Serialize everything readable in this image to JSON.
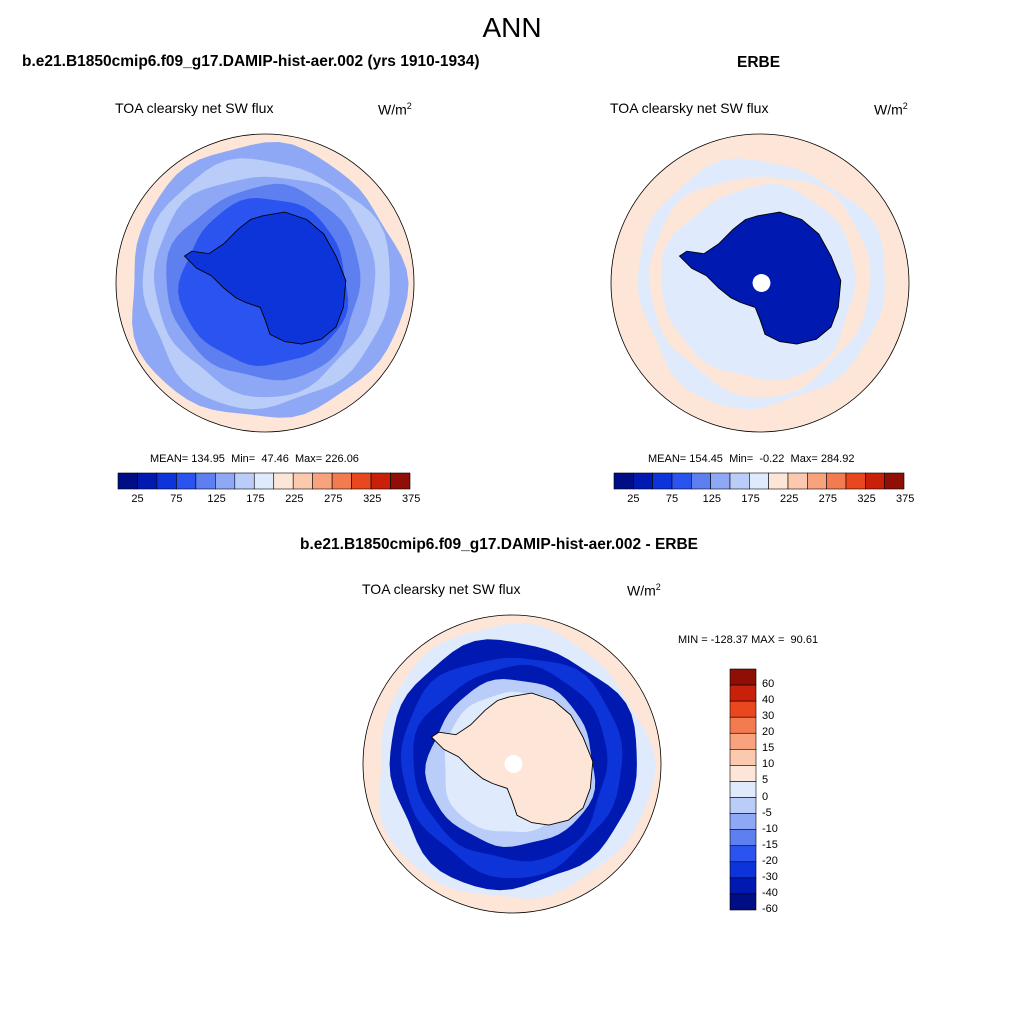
{
  "main_title": "ANN",
  "colors": {
    "abs_scale": [
      "#000e85",
      "#0019b0",
      "#0d34d9",
      "#2b53ef",
      "#5d7ff0",
      "#8ea8f5",
      "#b9cdf8",
      "#dfeafc",
      "#fde6d7",
      "#fbc9ae",
      "#f9a37e",
      "#f47b4f",
      "#e9481e",
      "#c9200a",
      "#8f0e05"
    ],
    "diff_scale": [
      "#000e85",
      "#0019b0",
      "#0d34d9",
      "#2b53ef",
      "#5d7ff0",
      "#8ea8f5",
      "#b9cdf8",
      "#dfeafc",
      "#fde6d7",
      "#fbc9ae",
      "#f9a37e",
      "#f47b4f",
      "#e9481e",
      "#c9200a",
      "#8f0e05"
    ],
    "land_outline": "#000000"
  },
  "panels": {
    "model": {
      "case_title": "b.e21.B1850cmip6.f09_g17.DAMIP-hist-aer.002 (yrs 1910-1934)",
      "variable": "TOA clearsky net SW flux",
      "units_base": "W/m",
      "units_exp": "2",
      "mean_label": "MEAN=",
      "mean": "134.95",
      "min_label": "Min=",
      "min": "47.46",
      "max_label": "Max=",
      "max": "226.06"
    },
    "obs": {
      "case_title": "ERBE",
      "variable": "TOA clearsky net SW flux",
      "units_base": "W/m",
      "units_exp": "2",
      "mean_label": "MEAN=",
      "mean": "154.45",
      "min_label": "Min=",
      "min": "-0.22",
      "max_label": "Max=",
      "max": "284.92"
    },
    "diff": {
      "case_title": "b.e21.B1850cmip6.f09_g17.DAMIP-hist-aer.002 - ERBE",
      "variable": "TOA clearsky net SW flux",
      "units_base": "W/m",
      "units_exp": "2",
      "min_label": "MIN =",
      "min": "-128.37",
      "max_label": "MAX =",
      "max": "90.61"
    }
  },
  "abs_colorbar": {
    "ticks": [
      "25",
      "75",
      "125",
      "175",
      "225",
      "275",
      "325",
      "375"
    ]
  },
  "diff_colorbar": {
    "ticks": [
      "60",
      "40",
      "30",
      "20",
      "15",
      "10",
      "5",
      "0",
      "-5",
      "-10",
      "-15",
      "-20",
      "-30",
      "-40",
      "-60"
    ]
  },
  "map_fields": {
    "model": {
      "ocean_rings": [
        5,
        6,
        5,
        4,
        3
      ],
      "ice_level": 2,
      "pole_hole": false
    },
    "obs": {
      "ocean_rings": [
        8,
        7,
        8,
        7
      ],
      "ice_level": 1,
      "pole_hole": true
    },
    "diff": {
      "ocean_rings": [
        7,
        1,
        2,
        1,
        6,
        7
      ],
      "ice_level": 8,
      "pole_hole": true
    }
  }
}
